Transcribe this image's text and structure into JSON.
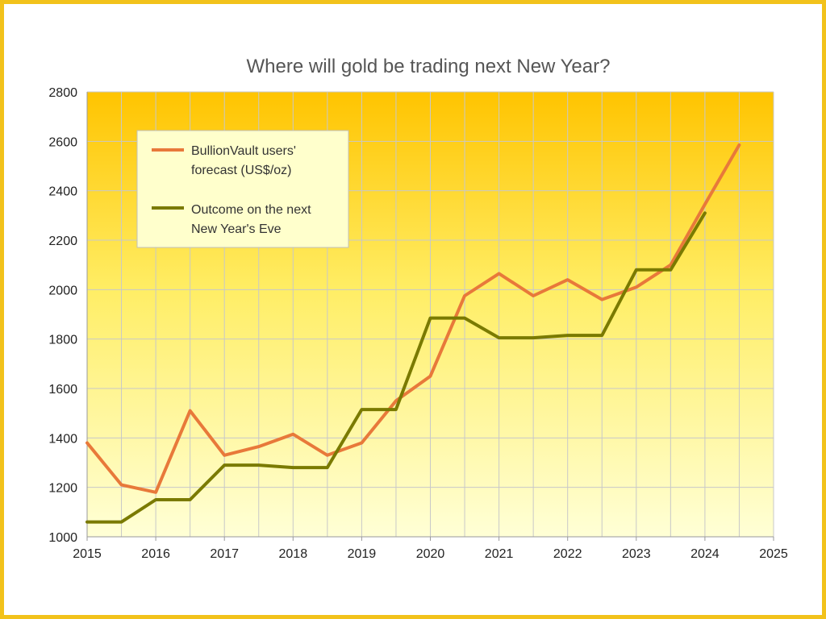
{
  "chart_data": {
    "type": "line",
    "title": "Where will gold be trading next New Year?",
    "xlabel": "",
    "ylabel": "",
    "xlim": [
      2015,
      2025
    ],
    "ylim": [
      1000,
      2800
    ],
    "xticks": [
      "2015",
      "2016",
      "2017",
      "2018",
      "2019",
      "2020",
      "2021",
      "2022",
      "2023",
      "2024",
      "2025"
    ],
    "yticks": [
      "1000",
      "1200",
      "1400",
      "1600",
      "1800",
      "2000",
      "2200",
      "2400",
      "2600",
      "2800"
    ],
    "grid": true,
    "legend_position": "top-left",
    "series": [
      {
        "name": "BullionVault users' forecast (US$/oz)",
        "name_lines": [
          "BullionVault users'",
          "forecast (US$/oz)"
        ],
        "color": "#e8793a",
        "x": [
          2015,
          2015.5,
          2016,
          2016.5,
          2017,
          2017.5,
          2018,
          2018.5,
          2019,
          2019.5,
          2020,
          2020.5,
          2021,
          2021.5,
          2022,
          2022.5,
          2023,
          2023.5,
          2024,
          2024.5
        ],
        "y": [
          1380,
          1210,
          1180,
          1510,
          1330,
          1365,
          1415,
          1330,
          1380,
          1550,
          1650,
          1975,
          2065,
          1975,
          2040,
          1960,
          2010,
          2100,
          2345,
          2585
        ]
      },
      {
        "name": "Outcome on the next New Year's Eve",
        "name_lines": [
          "Outcome on the next",
          "New Year's Eve"
        ],
        "color": "#7a7a00",
        "x": [
          2015,
          2015.5,
          2016,
          2016.5,
          2017,
          2017.5,
          2018,
          2018.5,
          2019,
          2019.5,
          2020,
          2020.5,
          2021,
          2021.5,
          2022,
          2022.5,
          2023,
          2023.5,
          2024
        ],
        "y": [
          1060,
          1060,
          1150,
          1150,
          1290,
          1290,
          1280,
          1280,
          1515,
          1515,
          1885,
          1885,
          1805,
          1805,
          1815,
          1815,
          2080,
          2080,
          2310
        ]
      }
    ]
  }
}
